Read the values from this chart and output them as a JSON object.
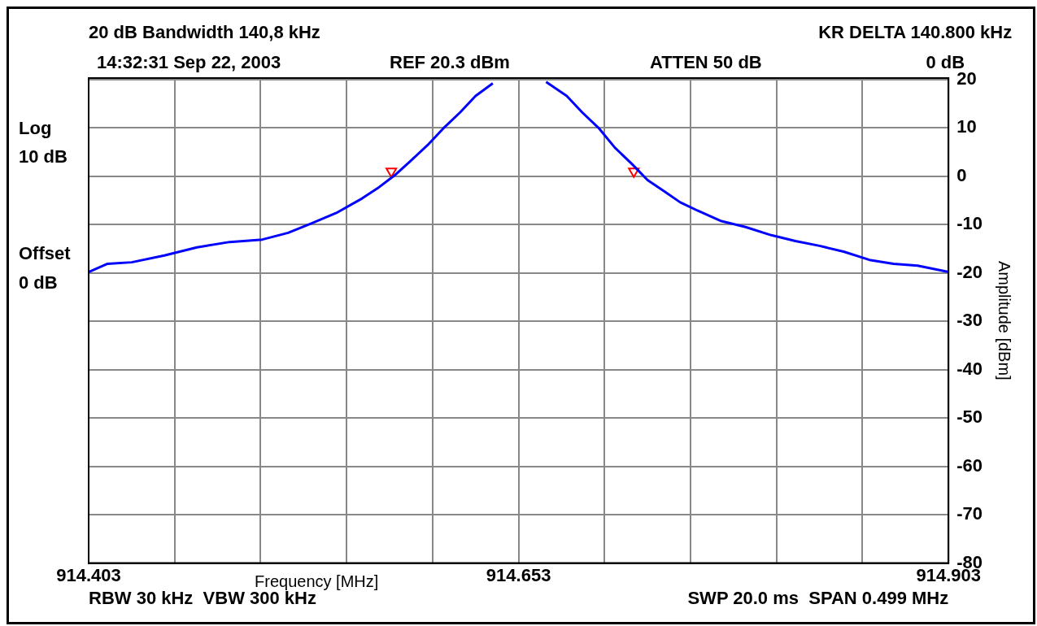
{
  "chart_data": {
    "type": "line",
    "title": "20 dB Bandwidth 140,8 kHz",
    "xlabel": "Frequency [MHz]",
    "ylabel": "Amplitude [dBm]",
    "annotations": [
      "KR DELTA 140.800 kHz",
      "14:32:31 Sep 22, 2003",
      "REF 20.3 dBm",
      "ATTEN 50 dB",
      "0 dB",
      "Log",
      "10 dB",
      "Offset",
      "0 dB",
      "RBW 30 kHz  VBW 300 kHz",
      "SWP 20.0 ms  SPAN 0.499 MHz"
    ],
    "xlim": [
      914.403,
      914.903
    ],
    "xticks": [
      914.403,
      {
        "value": 914.453,
        "label": null
      },
      {
        "value": 914.503,
        "label": null
      },
      {
        "value": 914.553,
        "label": null
      },
      {
        "value": 914.603,
        "label": null
      },
      914.653,
      {
        "value": 914.703,
        "label": null
      },
      {
        "value": 914.753,
        "label": null
      },
      {
        "value": 914.803,
        "label": null
      },
      {
        "value": 914.853,
        "label": null
      },
      914.903
    ],
    "ylim": [
      -80,
      20.3
    ],
    "yticks": [
      -80,
      -70,
      -60,
      -50,
      -40,
      -30,
      -20,
      -10,
      0,
      10,
      20
    ],
    "grid": true,
    "legend": false,
    "series": [
      {
        "color": "#0000ff",
        "marker": "none",
        "x": [
          914.403,
          914.414,
          914.428,
          914.447,
          914.466,
          914.485,
          914.504,
          914.519,
          914.533,
          914.547,
          914.562,
          914.571,
          914.581,
          914.59,
          914.6,
          914.609,
          914.619,
          914.628,
          914.638,
          914.645,
          914.662,
          914.669,
          914.681,
          914.69,
          914.7,
          914.709,
          914.719,
          914.728,
          914.738,
          914.747,
          914.757,
          914.771,
          914.785,
          914.8,
          914.814,
          914.828,
          914.842,
          914.857,
          914.871,
          914.885,
          914.903
        ],
        "values": [
          -19.8,
          -18.1,
          -17.8,
          -16.4,
          -14.7,
          -13.6,
          -13.1,
          -11.7,
          -9.7,
          -7.6,
          -4.6,
          -2.5,
          0.2,
          3.1,
          6.4,
          9.8,
          13.2,
          16.6,
          19.2,
          null,
          null,
          19.5,
          16.6,
          13.2,
          9.8,
          5.9,
          2.5,
          -0.8,
          -3.2,
          -5.4,
          -7.1,
          -9.3,
          -10.5,
          -12.2,
          -13.4,
          -14.4,
          -15.6,
          -17.3,
          -18.1,
          -18.5,
          -19.8
        ]
      },
      {
        "type": "scatter",
        "color": "#ff0000",
        "marker": "triangle",
        "x": [
          914.579,
          914.72
        ],
        "values": [
          1,
          1
        ]
      }
    ]
  }
}
